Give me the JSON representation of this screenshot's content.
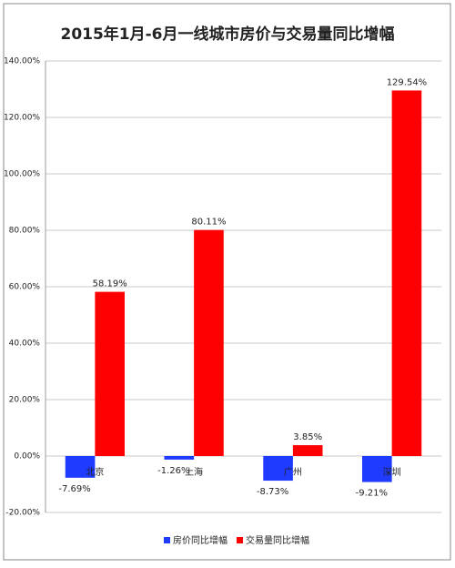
{
  "chart_data": {
    "type": "bar",
    "title": "2015年1月-6月一线城市房价与交易量同比增幅",
    "categories": [
      "北京",
      "上海",
      "广州",
      "深圳"
    ],
    "series": [
      {
        "name": "房价同比增幅",
        "color": "#1f3bff",
        "values": [
          -7.69,
          -1.26,
          -8.73,
          -9.21
        ],
        "value_labels": [
          "-7.69%",
          "-1.26%",
          "-8.73%",
          "-9.21%"
        ]
      },
      {
        "name": "交易量同比增幅",
        "color": "#ff0000",
        "values": [
          58.19,
          80.11,
          3.85,
          129.54
        ],
        "value_labels": [
          "58.19%",
          "80.11%",
          "3.85%",
          "129.54%"
        ]
      }
    ],
    "ylim": [
      -20,
      140
    ],
    "yticks": [
      {
        "value": -20,
        "label": "-20.00%"
      },
      {
        "value": 0,
        "label": "0.00%"
      },
      {
        "value": 20,
        "label": "20.00%"
      },
      {
        "value": 40,
        "label": "40.00%"
      },
      {
        "value": 60,
        "label": "60.00%"
      },
      {
        "value": 80,
        "label": "80.00%"
      },
      {
        "value": 100,
        "label": "100.00%"
      },
      {
        "value": 120,
        "label": "120.00%"
      },
      {
        "value": 140,
        "label": "140.00%"
      }
    ],
    "grid": true,
    "legend": "bottom"
  }
}
